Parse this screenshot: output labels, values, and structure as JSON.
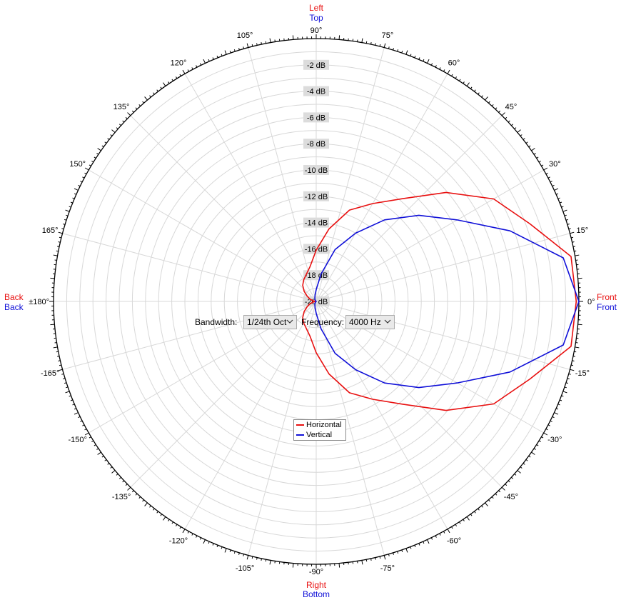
{
  "chart_data": {
    "type": "polar-line",
    "angle_labels": [
      "90°",
      "75°",
      "60°",
      "45°",
      "30°",
      "15°",
      "0°",
      "-15°",
      "-30°",
      "-45°",
      "-60°",
      "-75°",
      "-90°",
      "-105°",
      "-120°",
      "-135°",
      "-150°",
      "-165°",
      "±180°",
      "165°",
      "150°",
      "135°",
      "120°",
      "105°"
    ],
    "radial_labels": [
      "-2 dB",
      "-4 dB",
      "-6 dB",
      "-8 dB",
      "-10 dB",
      "-12 dB",
      "-14 dB",
      "-16 dB",
      "-18 dB",
      "-20 dB"
    ],
    "radial_range_db": [
      -20,
      0
    ],
    "edge_labels": {
      "top_1": "Left",
      "top_2": "Top",
      "bottom_1": "Right",
      "bottom_2": "Bottom",
      "left_1": "Back",
      "left_2": "Back",
      "right_1": "Front",
      "right_2": "Front"
    },
    "angles_deg": [
      0,
      10,
      20,
      30,
      40,
      50,
      60,
      70,
      80,
      90,
      100,
      110,
      120,
      130,
      140,
      150,
      160,
      170,
      180,
      -170,
      -160,
      -150,
      -140,
      -130,
      -120,
      -110,
      -100,
      -90,
      -80,
      -70,
      -60,
      -50,
      -40,
      -30,
      -20,
      -10
    ],
    "series": [
      {
        "name": "Horizontal",
        "color": "#e81010",
        "values": [
          -0.2,
          -0.3,
          -2.7,
          -4.4,
          -7.1,
          -9.8,
          -11.4,
          -12.6,
          -14.4,
          -16.1,
          -17.3,
          -17.8,
          -18.1,
          -18.4,
          -18.8,
          -19.2,
          -19.5,
          -19.8,
          -20,
          -19.8,
          -19.5,
          -19.2,
          -18.8,
          -18.4,
          -18.1,
          -17.8,
          -17.3,
          -16.1,
          -14.4,
          -12.6,
          -11.4,
          -9.8,
          -7.1,
          -4.4,
          -2.7,
          -0.3
        ]
      },
      {
        "name": "Vertical",
        "color": "#1010d8",
        "values": [
          0,
          -0.9,
          -4.3,
          -7.6,
          -9.8,
          -11.9,
          -14.0,
          -15.8,
          -17.9,
          -19.1,
          -19.5,
          -19.7,
          -19.8,
          -19.9,
          -20,
          -20,
          -20,
          -20,
          -20,
          -20,
          -20,
          -20,
          -20,
          -19.9,
          -19.8,
          -19.7,
          -19.5,
          -19.1,
          -17.9,
          -15.8,
          -14.0,
          -11.9,
          -9.8,
          -7.6,
          -4.3,
          -0.9
        ]
      }
    ],
    "grid": true,
    "legend_position": "bottom-center"
  },
  "controls": {
    "bandwidth_label": "Bandwidth:",
    "bandwidth_value": "1/24th Oct",
    "frequency_label": "Frequency:",
    "frequency_value": "4000 Hz"
  },
  "legend": {
    "horizontal": "Horizontal",
    "vertical": "Vertical"
  }
}
